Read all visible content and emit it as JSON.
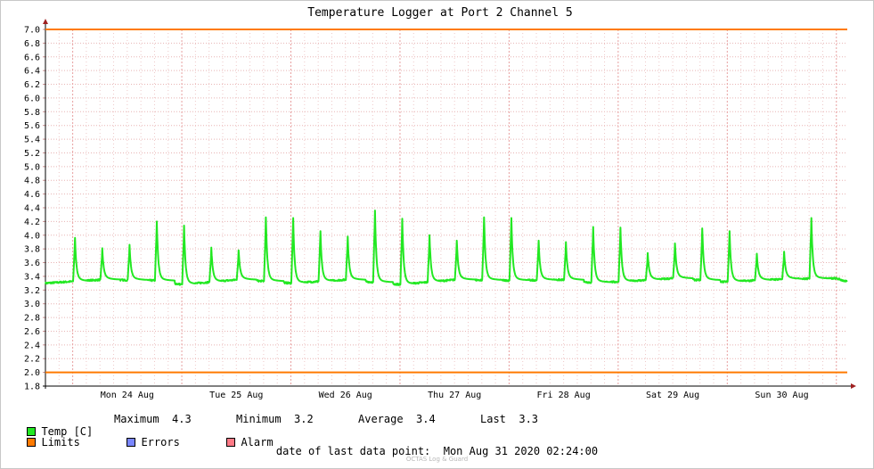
{
  "chart_data": {
    "type": "line",
    "title": "Temperature Logger at Port 2 Channel 5",
    "ylim": [
      1.8,
      7.0
    ],
    "y_ticks": [
      "7.0",
      "6.8",
      "6.6",
      "6.4",
      "6.2",
      "6.0",
      "5.8",
      "5.6",
      "5.4",
      "5.2",
      "5.0",
      "4.8",
      "4.6",
      "4.4",
      "4.2",
      "4.0",
      "3.8",
      "3.6",
      "3.4",
      "3.2",
      "3.0",
      "2.8",
      "2.6",
      "2.4",
      "2.2",
      "2.0",
      "1.8"
    ],
    "x_range": [
      "Sun Aug 23 2020 18:00",
      "Mon Aug 31 2020 02:24"
    ],
    "x_labels": [
      "Mon 24 Aug",
      "Tue 25 Aug",
      "Wed 26 Aug",
      "Thu 27 Aug",
      "Fri 28 Aug",
      "Sat 29 Aug",
      "Sun 30 Aug"
    ],
    "limits": {
      "upper": 7.0,
      "lower": 2.0,
      "color": "#ff7a00"
    },
    "series": [
      {
        "name": "Temp [C]",
        "color": "#22e822",
        "baseline": [
          {
            "x": "Aug 23 18:00",
            "y": 3.3
          },
          {
            "x": "Aug 24 06:00",
            "y": 3.35
          },
          {
            "x": "Aug 24 18:00",
            "y": 3.34
          },
          {
            "x": "Aug 25 00:00",
            "y": 3.28
          },
          {
            "x": "Aug 25 12:00",
            "y": 3.35
          },
          {
            "x": "Aug 25 18:00",
            "y": 3.33
          },
          {
            "x": "Aug 26 00:00",
            "y": 3.3
          },
          {
            "x": "Aug 26 12:00",
            "y": 3.35
          },
          {
            "x": "Aug 27 00:00",
            "y": 3.28
          },
          {
            "x": "Aug 27 12:00",
            "y": 3.35
          },
          {
            "x": "Aug 28 00:00",
            "y": 3.34
          },
          {
            "x": "Aug 28 12:00",
            "y": 3.35
          },
          {
            "x": "Aug 28 18:00",
            "y": 3.31
          },
          {
            "x": "Aug 29 00:00",
            "y": 3.32
          },
          {
            "x": "Aug 29 12:00",
            "y": 3.37
          },
          {
            "x": "Aug 30 00:00",
            "y": 3.32
          },
          {
            "x": "Aug 30 12:00",
            "y": 3.36
          },
          {
            "x": "Aug 31 00:00",
            "y": 3.37
          },
          {
            "x": "Aug 31 02:24",
            "y": 3.32
          }
        ],
        "peaks": [
          {
            "x": "Aug 24 00:30",
            "y": 3.9
          },
          {
            "x": "Aug 24 06:30",
            "y": 3.75
          },
          {
            "x": "Aug 24 12:30",
            "y": 3.8
          },
          {
            "x": "Aug 24 18:30",
            "y": 4.14
          },
          {
            "x": "Aug 25 00:30",
            "y": 4.08
          },
          {
            "x": "Aug 25 06:30",
            "y": 3.76
          },
          {
            "x": "Aug 25 12:30",
            "y": 3.72
          },
          {
            "x": "Aug 25 18:30",
            "y": 4.2
          },
          {
            "x": "Aug 26 00:30",
            "y": 4.19
          },
          {
            "x": "Aug 26 06:30",
            "y": 4.0
          },
          {
            "x": "Aug 26 12:30",
            "y": 3.92
          },
          {
            "x": "Aug 26 18:30",
            "y": 4.3
          },
          {
            "x": "Aug 27 00:30",
            "y": 4.18
          },
          {
            "x": "Aug 27 06:30",
            "y": 3.94
          },
          {
            "x": "Aug 27 12:30",
            "y": 3.86
          },
          {
            "x": "Aug 27 18:30",
            "y": 4.2
          },
          {
            "x": "Aug 28 00:30",
            "y": 4.19
          },
          {
            "x": "Aug 28 06:30",
            "y": 3.86
          },
          {
            "x": "Aug 28 12:30",
            "y": 3.84
          },
          {
            "x": "Aug 28 18:30",
            "y": 4.06
          },
          {
            "x": "Aug 29 00:30",
            "y": 4.05
          },
          {
            "x": "Aug 29 06:30",
            "y": 3.68
          },
          {
            "x": "Aug 29 12:30",
            "y": 3.82
          },
          {
            "x": "Aug 29 18:30",
            "y": 4.04
          },
          {
            "x": "Aug 30 00:30",
            "y": 4.0
          },
          {
            "x": "Aug 30 06:30",
            "y": 3.67
          },
          {
            "x": "Aug 30 12:30",
            "y": 3.7
          },
          {
            "x": "Aug 30 18:30",
            "y": 4.19
          }
        ]
      }
    ],
    "legend": {
      "temp_label": "Temp [C]",
      "max_label": "Maximum",
      "max_value": "4.3",
      "min_label": "Minimum",
      "min_value": "3.2",
      "avg_label": "Average",
      "avg_value": "3.4",
      "last_label": "Last",
      "last_value": "3.3",
      "limits_label": "Limits",
      "errors_label": "Errors",
      "alarm_label": "Alarm",
      "temp_color": "#22e822",
      "limits_color": "#ff7a00",
      "errors_color": "#7a86ff",
      "alarm_color": "#ff7a86"
    },
    "footer": "date of last data point:  Mon Aug 31 2020 02:24:00",
    "watermark": "OCTAS Log & Guard"
  }
}
